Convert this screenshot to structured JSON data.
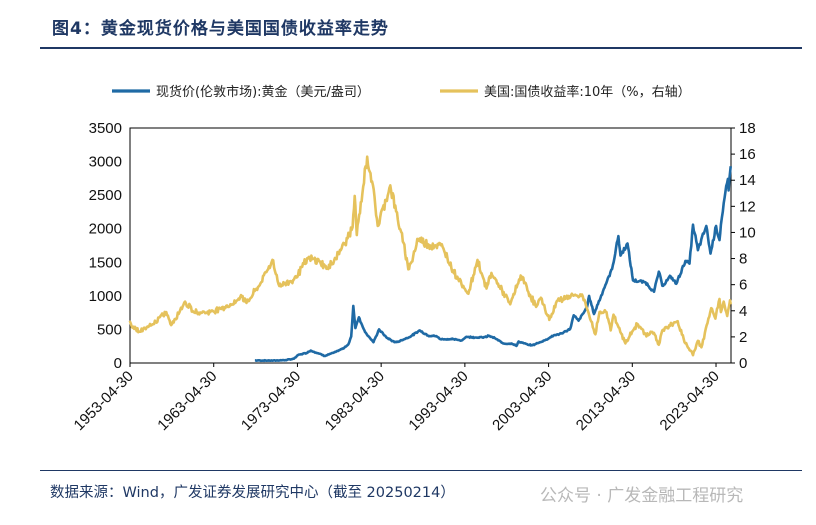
{
  "figure": {
    "title": "图4：黄金现货价格与美国国债收益率走势",
    "source": "数据来源：Wind，广发证券发展研究中心（截至 20250214）",
    "watermark": "公众号 · 广发金融工程研究"
  },
  "chart_data": {
    "type": "line",
    "title": "",
    "xlabel": "",
    "ylabel": "",
    "x_tick_labels": [
      "1953-04-30",
      "1963-04-30",
      "1973-04-30",
      "1983-04-30",
      "1993-04-30",
      "2003-04-30",
      "2013-04-30",
      "2023-04-30"
    ],
    "y_left_ticks": [
      "0",
      "500",
      "1000",
      "1500",
      "2000",
      "2500",
      "3000",
      "3500"
    ],
    "y_right_ticks": [
      "0",
      "2",
      "4",
      "6",
      "8",
      "10",
      "12",
      "14",
      "16",
      "18"
    ],
    "ylim_left": [
      0,
      3500
    ],
    "ylim_right": [
      0,
      18
    ],
    "xlim": [
      "1953-04-30",
      "2025-02-14"
    ],
    "grid": false,
    "legend_position": "top",
    "series": [
      {
        "name": "现货价(伦敦市场):黄金（美元/盎司）",
        "axis": "left",
        "color": "#1f6aa5",
        "points": [
          [
            "1968-04",
            38
          ],
          [
            "1970-06",
            36
          ],
          [
            "1971-12",
            43
          ],
          [
            "1972-12",
            64
          ],
          [
            "1973-06",
            120
          ],
          [
            "1974-06",
            150
          ],
          [
            "1974-12",
            185
          ],
          [
            "1975-12",
            140
          ],
          [
            "1976-08",
            105
          ],
          [
            "1977-12",
            165
          ],
          [
            "1978-12",
            225
          ],
          [
            "1979-06",
            280
          ],
          [
            "1979-10",
            395
          ],
          [
            "1980-01",
            850
          ],
          [
            "1980-04",
            520
          ],
          [
            "1980-09",
            680
          ],
          [
            "1981-06",
            460
          ],
          [
            "1982-06",
            310
          ],
          [
            "1983-02",
            500
          ],
          [
            "1983-12",
            385
          ],
          [
            "1984-12",
            310
          ],
          [
            "1985-06",
            320
          ],
          [
            "1986-12",
            400
          ],
          [
            "1987-12",
            485
          ],
          [
            "1988-12",
            410
          ],
          [
            "1989-12",
            400
          ],
          [
            "1990-06",
            355
          ],
          [
            "1991-12",
            355
          ],
          [
            "1992-12",
            335
          ],
          [
            "1993-07",
            390
          ],
          [
            "1994-12",
            380
          ],
          [
            "1995-12",
            385
          ],
          [
            "1996-02",
            410
          ],
          [
            "1996-12",
            370
          ],
          [
            "1997-12",
            290
          ],
          [
            "1998-12",
            290
          ],
          [
            "1999-07",
            255
          ],
          [
            "1999-10",
            320
          ],
          [
            "2000-12",
            270
          ],
          [
            "2001-06",
            265
          ],
          [
            "2002-12",
            340
          ],
          [
            "2003-12",
            410
          ],
          [
            "2004-12",
            440
          ],
          [
            "2005-12",
            510
          ],
          [
            "2006-05",
            710
          ],
          [
            "2006-12",
            630
          ],
          [
            "2007-12",
            830
          ],
          [
            "2008-03",
            1000
          ],
          [
            "2008-10",
            730
          ],
          [
            "2009-12",
            1100
          ],
          [
            "2010-12",
            1400
          ],
          [
            "2011-09",
            1890
          ],
          [
            "2011-12",
            1600
          ],
          [
            "2012-10",
            1780
          ],
          [
            "2013-06",
            1230
          ],
          [
            "2014-12",
            1200
          ],
          [
            "2015-12",
            1060
          ],
          [
            "2016-07",
            1360
          ],
          [
            "2016-12",
            1150
          ],
          [
            "2017-12",
            1290
          ],
          [
            "2018-08",
            1180
          ],
          [
            "2019-09",
            1520
          ],
          [
            "2020-03",
            1480
          ],
          [
            "2020-08",
            2060
          ],
          [
            "2021-03",
            1680
          ],
          [
            "2022-03",
            2040
          ],
          [
            "2022-09",
            1630
          ],
          [
            "2023-05",
            2040
          ],
          [
            "2023-10",
            1830
          ],
          [
            "2023-12",
            2060
          ],
          [
            "2024-04",
            2380
          ],
          [
            "2024-10",
            2740
          ],
          [
            "2024-11",
            2570
          ],
          [
            "2025-02",
            2930
          ]
        ]
      },
      {
        "name": "美国:国债收益率:10年（%，右轴）",
        "axis": "right",
        "color": "#e5c25c",
        "points": [
          [
            "1953-04",
            3.1
          ],
          [
            "1954-06",
            2.4
          ],
          [
            "1955-12",
            2.9
          ],
          [
            "1957-09",
            3.9
          ],
          [
            "1958-04",
            2.9
          ],
          [
            "1959-12",
            4.7
          ],
          [
            "1960-12",
            3.9
          ],
          [
            "1962-12",
            3.9
          ],
          [
            "1965-12",
            4.6
          ],
          [
            "1966-08",
            5.2
          ],
          [
            "1967-04",
            4.6
          ],
          [
            "1968-12",
            6.1
          ],
          [
            "1970-05",
            7.9
          ],
          [
            "1971-03",
            5.9
          ],
          [
            "1972-12",
            6.4
          ],
          [
            "1974-08",
            8.0
          ],
          [
            "1975-12",
            7.8
          ],
          [
            "1977-01",
            7.2
          ],
          [
            "1978-12",
            9.1
          ],
          [
            "1979-12",
            10.4
          ],
          [
            "1980-03",
            12.8
          ],
          [
            "1980-06",
            9.8
          ],
          [
            "1981-09",
            15.8
          ],
          [
            "1982-04",
            13.9
          ],
          [
            "1982-12",
            10.5
          ],
          [
            "1984-06",
            13.6
          ],
          [
            "1985-12",
            9.3
          ],
          [
            "1986-09",
            7.2
          ],
          [
            "1987-10",
            9.5
          ],
          [
            "1988-12",
            9.1
          ],
          [
            "1990-09",
            8.9
          ],
          [
            "1991-12",
            7.1
          ],
          [
            "1993-10",
            5.3
          ],
          [
            "1994-11",
            7.9
          ],
          [
            "1995-12",
            5.7
          ],
          [
            "1996-07",
            6.9
          ],
          [
            "1998-10",
            4.5
          ],
          [
            "2000-01",
            6.7
          ],
          [
            "2001-11",
            4.3
          ],
          [
            "2002-06",
            5.0
          ],
          [
            "2003-06",
            3.3
          ],
          [
            "2004-06",
            4.8
          ],
          [
            "2006-06",
            5.2
          ],
          [
            "2007-06",
            5.1
          ],
          [
            "2008-12",
            2.2
          ],
          [
            "2009-06",
            3.9
          ],
          [
            "2010-04",
            3.9
          ],
          [
            "2010-10",
            2.5
          ],
          [
            "2011-02",
            3.7
          ],
          [
            "2012-07",
            1.5
          ],
          [
            "2013-12",
            3.0
          ],
          [
            "2014-12",
            2.2
          ],
          [
            "2015-12",
            2.3
          ],
          [
            "2016-07",
            1.4
          ],
          [
            "2016-12",
            2.5
          ],
          [
            "2018-10",
            3.2
          ],
          [
            "2019-09",
            1.5
          ],
          [
            "2020-08",
            0.6
          ],
          [
            "2021-03",
            1.7
          ],
          [
            "2021-08",
            1.2
          ],
          [
            "2022-06",
            3.4
          ],
          [
            "2022-10",
            4.2
          ],
          [
            "2023-04",
            3.4
          ],
          [
            "2023-10",
            4.9
          ],
          [
            "2023-12",
            3.9
          ],
          [
            "2024-04",
            4.7
          ],
          [
            "2024-09",
            3.6
          ],
          [
            "2025-01",
            4.8
          ],
          [
            "2025-02",
            4.5
          ]
        ]
      }
    ]
  }
}
